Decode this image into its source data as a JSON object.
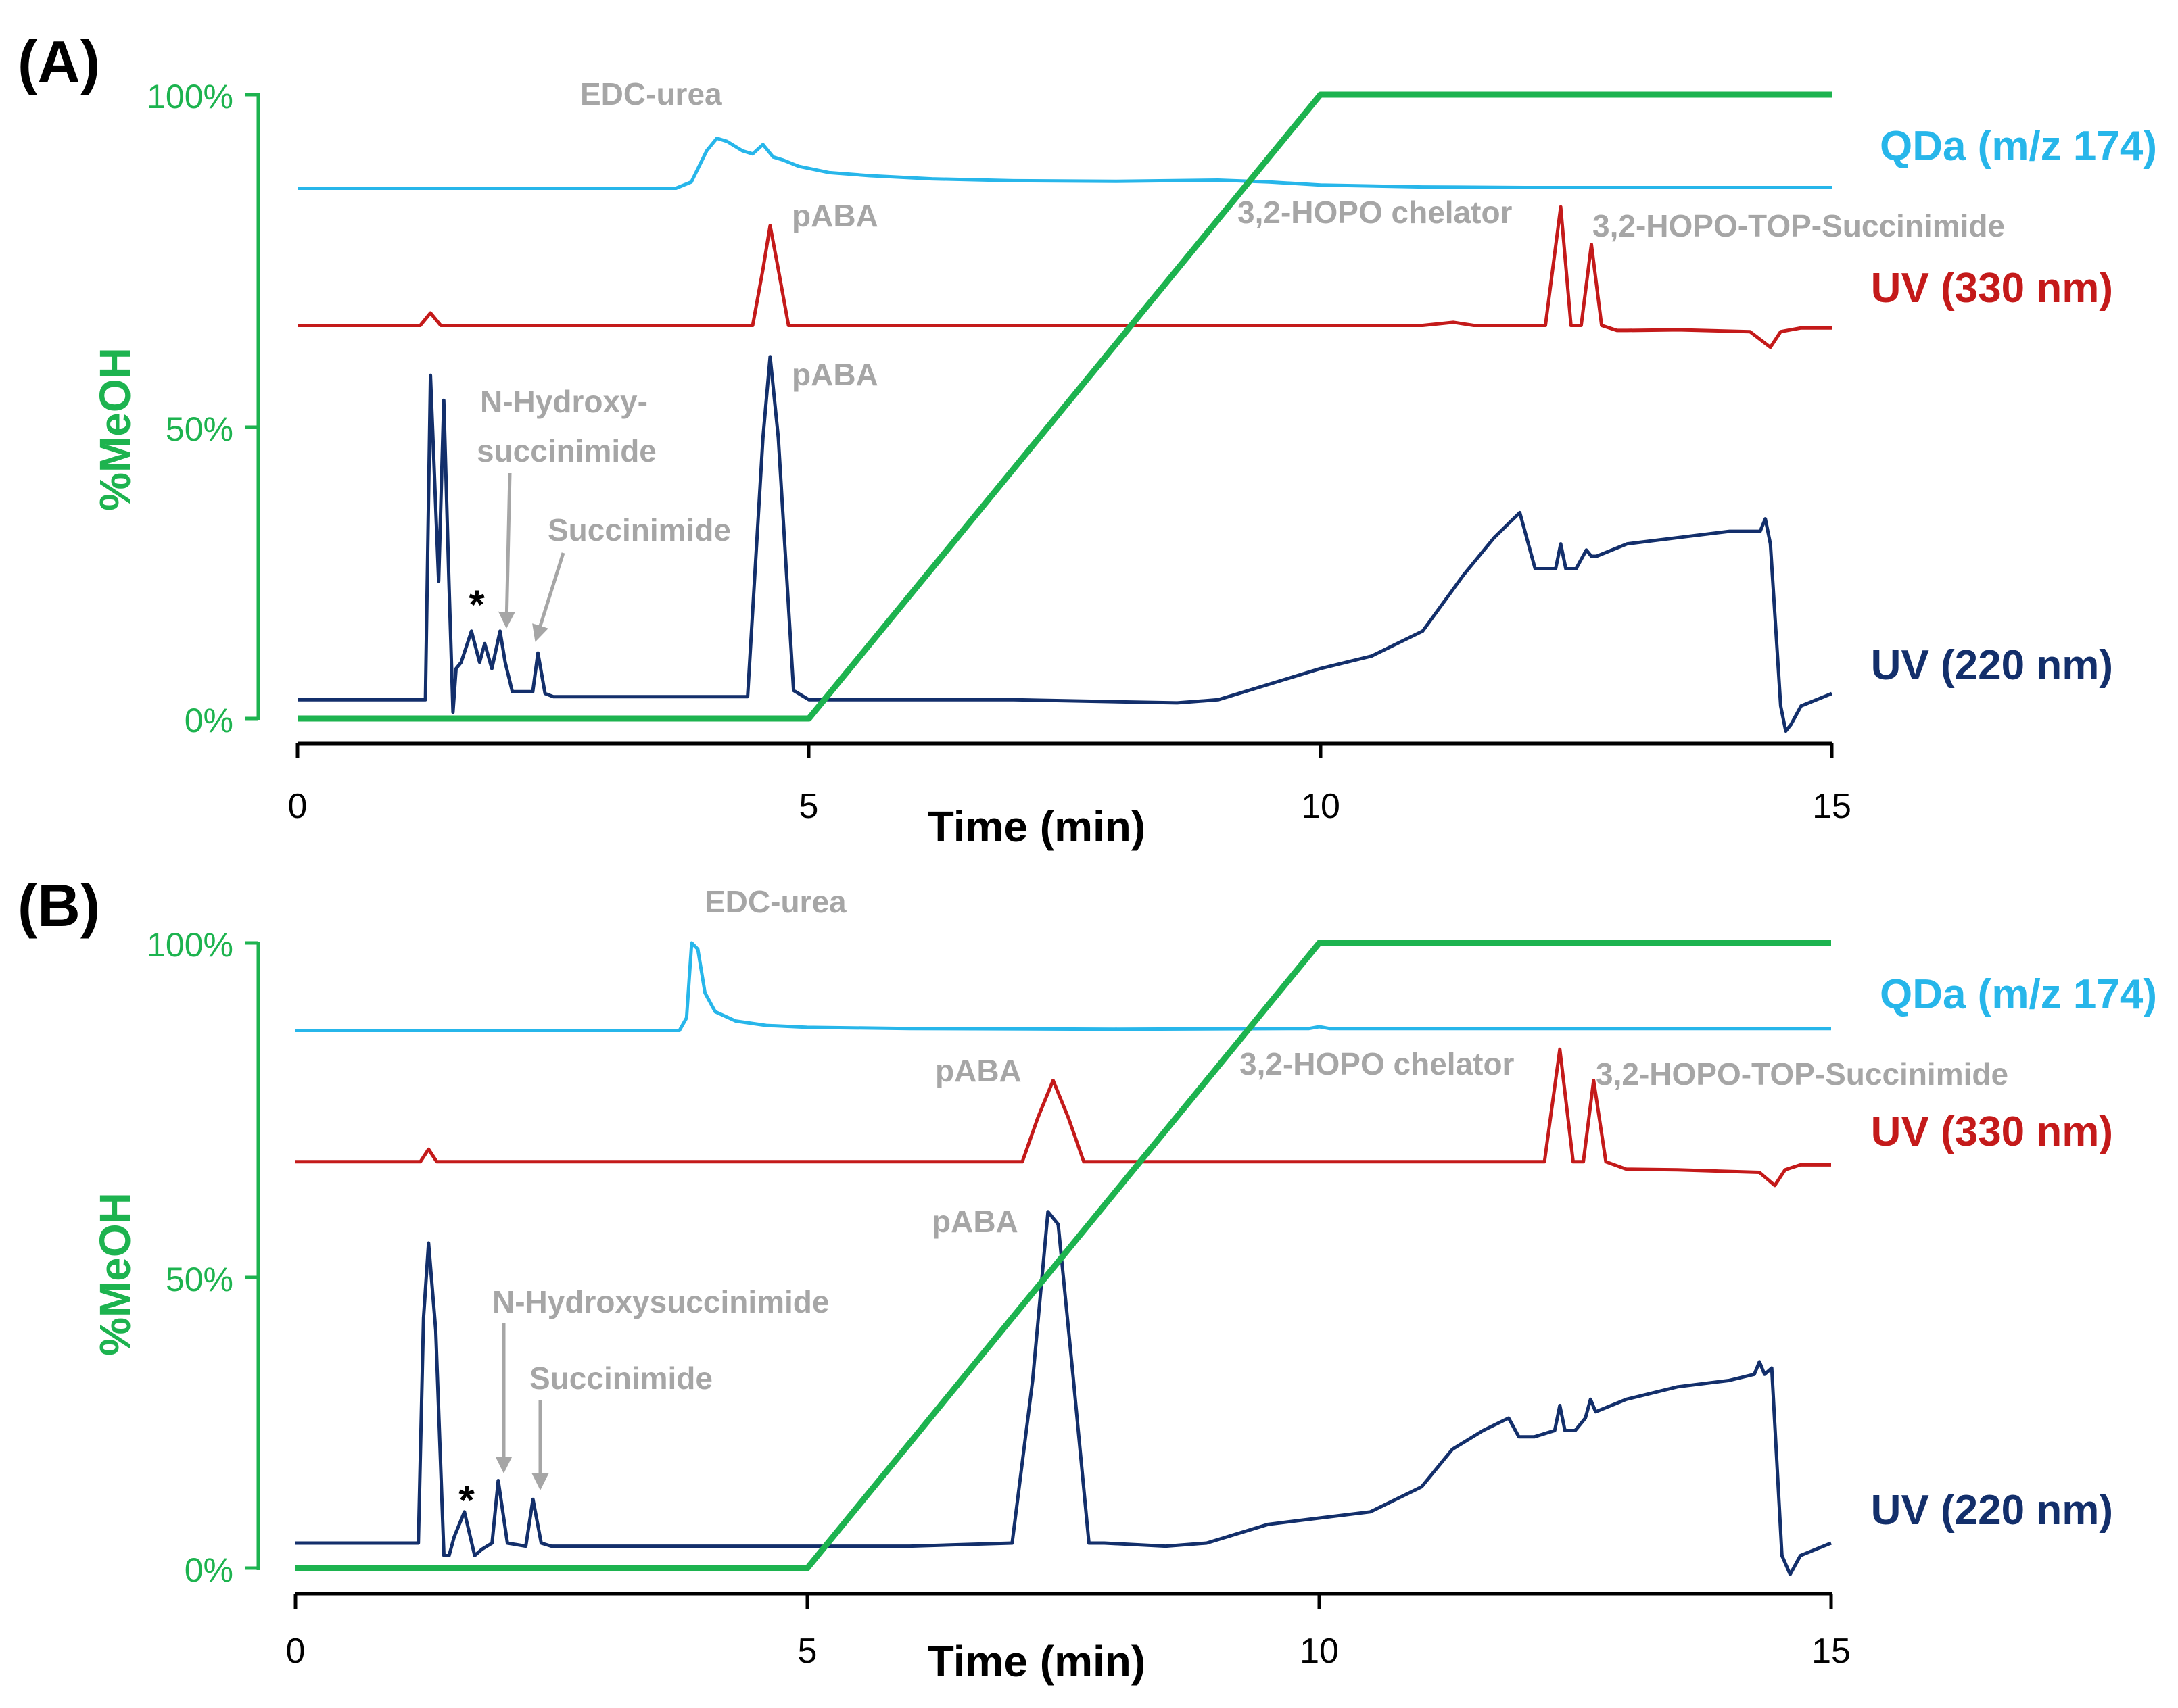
{
  "colors": {
    "meoh": "#1db34f",
    "qda": "#27b6ea",
    "uv330": "#c41a1a",
    "uv220": "#132f6b",
    "annotation": "#a6a6a6",
    "axis": "#000000"
  },
  "chart_data": [
    {
      "type": "line",
      "panel_label": "(A)",
      "xlabel": "Time (min)",
      "ylabel": "%MeOH",
      "xlim": [
        0,
        15
      ],
      "ylim": [
        0,
        100
      ],
      "x_ticks": [
        "0",
        "5",
        "10",
        "15"
      ],
      "y_ticks": [
        "0%",
        "50%",
        "100%"
      ],
      "series": [
        {
          "name": "%MeOH gradient",
          "x": [
            0,
            5,
            10,
            15
          ],
          "y": [
            0,
            0,
            100,
            100
          ]
        },
        {
          "name": "QDa (m/z 174)",
          "baseline": 85,
          "x": [
            0,
            3.7,
            3.85,
            4.0,
            4.1,
            4.2,
            4.35,
            4.45,
            4.55,
            4.65,
            4.75,
            4.9,
            5.2,
            5.6,
            6.2,
            7.0,
            8.0,
            9.0,
            9.5,
            10.0,
            11,
            12,
            13,
            14,
            15
          ],
          "y": [
            85,
            85,
            86,
            91,
            93,
            92.5,
            91,
            90.5,
            92,
            90,
            89.5,
            88.5,
            87.5,
            87,
            86.5,
            86.2,
            86.1,
            86.3,
            86,
            85.5,
            85.2,
            85.1,
            85.1,
            85.1,
            85.1
          ]
        },
        {
          "name": "UV (330 nm)",
          "baseline": 63,
          "x": [
            0,
            1.2,
            1.3,
            1.4,
            4.45,
            4.55,
            4.62,
            4.7,
            4.8,
            11.0,
            11.3,
            11.5,
            11.7,
            12.2,
            12.35,
            12.45,
            12.55,
            12.65,
            12.75,
            12.9,
            13.0,
            13.5,
            14.2,
            14.4,
            14.5,
            14.7,
            15
          ],
          "y": [
            63,
            63,
            65,
            63,
            63,
            72,
            79,
            72,
            63,
            63,
            63.5,
            63,
            63,
            63,
            82,
            63,
            63,
            76,
            63,
            62.2,
            62.2,
            62.3,
            62.0,
            59.5,
            62.0,
            62.6,
            62.6
          ]
        },
        {
          "name": "UV (220 nm)",
          "baseline": 3,
          "x": [
            0,
            1.25,
            1.3,
            1.38,
            1.43,
            1.48,
            1.52,
            1.55,
            1.6,
            1.7,
            1.78,
            1.83,
            1.9,
            1.98,
            2.03,
            2.1,
            2.3,
            2.35,
            2.42,
            2.5,
            4.4,
            4.55,
            4.62,
            4.7,
            4.85,
            5,
            6,
            7,
            8.6,
            9,
            10,
            10.5,
            11,
            11.4,
            11.7,
            11.95,
            12.1,
            12.3,
            12.35,
            12.4,
            12.5,
            12.6,
            12.65,
            12.7,
            13,
            13.5,
            14,
            14.3,
            14.35,
            14.4,
            14.5,
            14.55,
            14.6,
            14.7,
            15
          ],
          "y": [
            3,
            3,
            55,
            22,
            51,
            22,
            1,
            8,
            9,
            14,
            9,
            12,
            8,
            14,
            9,
            4.3,
            4.3,
            10.5,
            4,
            3.5,
            3.5,
            45,
            58,
            45,
            4.5,
            3,
            3,
            3,
            2.5,
            3,
            8,
            10,
            14,
            23,
            29,
            33,
            24,
            24,
            28,
            24,
            24,
            27,
            26,
            26,
            28,
            29,
            30,
            30,
            32,
            28,
            2,
            -2,
            -1,
            2,
            4
          ]
        }
      ],
      "trace_labels": [
        "QDa (m/z 174)",
        "UV (330 nm)",
        "UV (220 nm)"
      ],
      "annotations": [
        "EDC-urea",
        "pABA",
        "3,2-HOPO chelator",
        "3,2-HOPO-TOP-Succinimide",
        "pABA",
        "N-Hydroxy-",
        "succinimide",
        "Succinimide",
        "*"
      ]
    },
    {
      "type": "line",
      "panel_label": "(B)",
      "xlabel": "Time (min)",
      "ylabel": "%MeOH",
      "xlim": [
        0,
        15
      ],
      "ylim": [
        0,
        100
      ],
      "x_ticks": [
        "0",
        "5",
        "10",
        "15"
      ],
      "y_ticks": [
        "0%",
        "50%",
        "100%"
      ],
      "series": [
        {
          "name": "%MeOH gradient",
          "x": [
            0,
            5,
            10,
            15
          ],
          "y": [
            0,
            0,
            100,
            100
          ]
        },
        {
          "name": "QDa (m/z 174)",
          "baseline": 86,
          "x": [
            0,
            3.75,
            3.82,
            3.87,
            3.93,
            4.0,
            4.1,
            4.3,
            4.6,
            5.0,
            6,
            8,
            9.9,
            10.0,
            10.1,
            15
          ],
          "y": [
            86,
            86,
            88,
            100,
            99,
            92,
            89,
            87.5,
            86.8,
            86.5,
            86.3,
            86.2,
            86.3,
            86.6,
            86.3,
            86.3
          ]
        },
        {
          "name": "UV (330 nm)",
          "baseline": 65,
          "x": [
            0,
            1.22,
            1.3,
            1.38,
            7.1,
            7.25,
            7.4,
            7.55,
            7.7,
            12.2,
            12.35,
            12.48,
            12.58,
            12.68,
            12.8,
            13.0,
            13.5,
            14.3,
            14.45,
            14.55,
            14.7,
            15
          ],
          "y": [
            65,
            65,
            67,
            65,
            65,
            72,
            78,
            72,
            65,
            65,
            83,
            65,
            65,
            78,
            65,
            63.8,
            63.7,
            63.3,
            61.2,
            63.7,
            64.5,
            64.5
          ]
        },
        {
          "name": "UV (220 nm)",
          "baseline": 4,
          "x": [
            0,
            1.2,
            1.25,
            1.3,
            1.37,
            1.45,
            1.5,
            1.55,
            1.65,
            1.75,
            1.82,
            1.92,
            1.98,
            2.07,
            2.25,
            2.32,
            2.4,
            2.5,
            5,
            6,
            7.0,
            7.2,
            7.35,
            7.45,
            7.6,
            7.75,
            7.9,
            8.5,
            8.9,
            9.5,
            10,
            10.5,
            11,
            11.3,
            11.6,
            11.85,
            11.95,
            12.1,
            12.3,
            12.35,
            12.4,
            12.5,
            12.6,
            12.65,
            12.7,
            13,
            13.5,
            14,
            14.25,
            14.3,
            14.35,
            14.42,
            14.52,
            14.6,
            14.7,
            15
          ],
          "y": [
            4,
            4,
            40,
            52,
            38,
            2,
            2,
            5,
            9,
            2,
            3,
            4,
            14,
            4,
            3.5,
            11,
            4,
            3.5,
            3.5,
            3.5,
            4,
            30,
            57,
            55,
            30,
            4,
            4,
            3.5,
            4,
            7,
            8,
            9,
            13,
            19,
            22,
            24,
            21,
            21,
            22,
            26,
            22,
            22,
            24,
            27,
            25,
            27,
            29,
            30,
            31,
            33,
            31,
            32,
            2,
            -1,
            2,
            4
          ]
        }
      ],
      "trace_labels": [
        "QDa (m/z 174)",
        "UV (330 nm)",
        "UV (220 nm)"
      ],
      "annotations": [
        "EDC-urea",
        "pABA",
        "3,2-HOPO chelator",
        "3,2-HOPO-TOP-Succinimide",
        "pABA",
        "N-Hydroxysuccinimide",
        "Succinimide",
        "*"
      ]
    }
  ]
}
